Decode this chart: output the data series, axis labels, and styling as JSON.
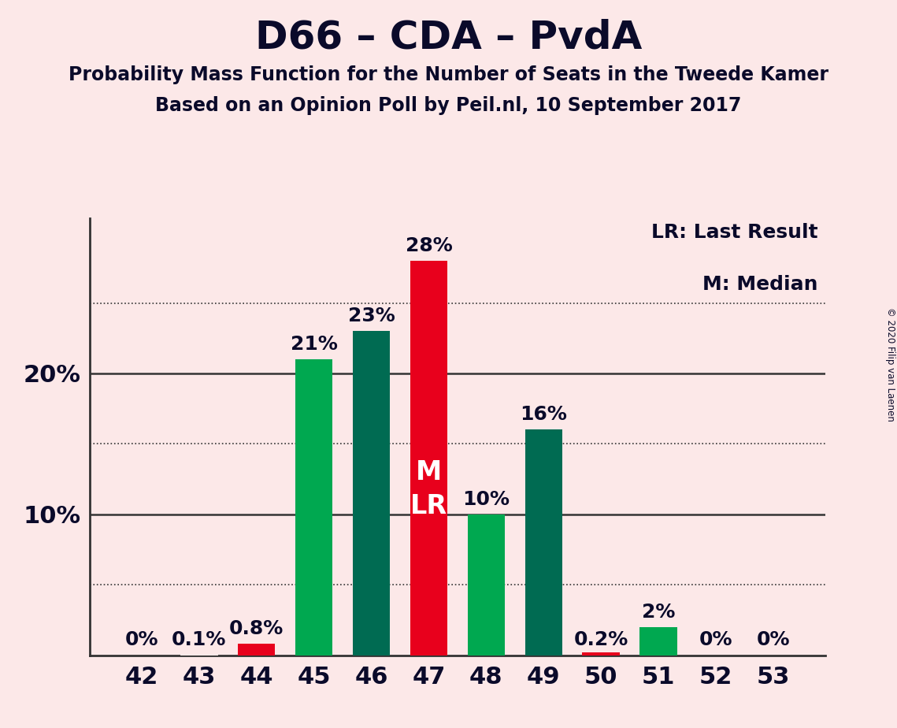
{
  "title": "D66 – CDA – PvdA",
  "subtitle1": "Probability Mass Function for the Number of Seats in the Tweede Kamer",
  "subtitle2": "Based on an Opinion Poll by Peil.nl, 10 September 2017",
  "copyright": "© 2020 Filip van Laenen",
  "legend_lr": "LR: Last Result",
  "legend_m": "M: Median",
  "categories": [
    42,
    43,
    44,
    45,
    46,
    47,
    48,
    49,
    50,
    51,
    52,
    53
  ],
  "values": [
    0.0,
    0.001,
    0.008,
    0.21,
    0.23,
    0.28,
    0.1,
    0.16,
    0.002,
    0.02,
    0.0,
    0.0
  ],
  "bar_colors": [
    "#fce8e8",
    "#fce8e8",
    "#e8001c",
    "#00a850",
    "#006b52",
    "#e8001c",
    "#00a850",
    "#006b52",
    "#e8001c",
    "#00a850",
    "#fce8e8",
    "#fce8e8"
  ],
  "value_labels": [
    "0%",
    "0.1%",
    "0.8%",
    "21%",
    "23%",
    "28%",
    "10%",
    "16%",
    "0.2%",
    "2%",
    "0%",
    "0%"
  ],
  "background_color": "#fce8e8",
  "ylim": [
    0,
    0.31
  ],
  "solid_lines": [
    0.1,
    0.2
  ],
  "dotted_lines": [
    0.05,
    0.15,
    0.25
  ],
  "ytick_positions": [
    0.1,
    0.2
  ],
  "ytick_labels": [
    "10%",
    "20%"
  ],
  "title_fontsize": 36,
  "subtitle_fontsize": 17,
  "axis_fontsize": 22,
  "label_fontsize": 18,
  "annotation_fontsize": 24,
  "bar_label_color": "#0a0a2a",
  "grid_color": "#333333",
  "text_color": "#0a0a2a"
}
